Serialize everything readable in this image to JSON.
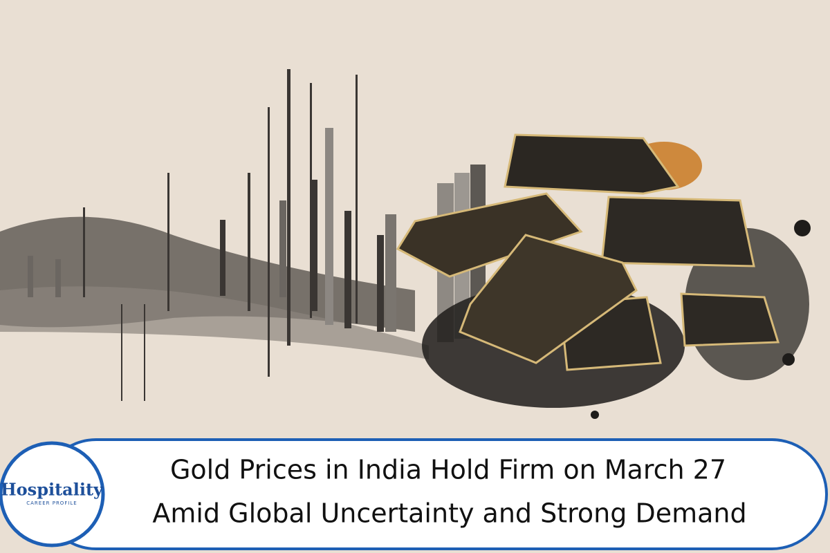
{
  "banner": {
    "title_lines": [
      "Gold Prices in India Hold Firm on March 27",
      "Amid Global Uncertainty and Strong Demand"
    ]
  },
  "logo": {
    "name": "Hospitality",
    "tagline": "CAREER PROFILE"
  }
}
